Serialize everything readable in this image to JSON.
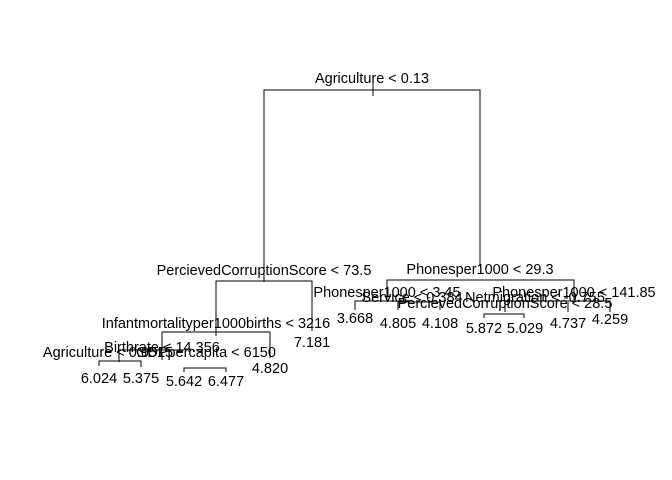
{
  "tree": {
    "root_split": "Agriculture < 0.13",
    "left_split": "PercievedCorruptionScore < 73.5",
    "left_left_split": "Infantmortalityper1000births < 3216",
    "left_left_left_split_a": "Agriculture < 0.0515",
    "left_left_left_split_b": "Birthrate < 14.356",
    "left_left_left_split_c": "GDPpercapita < 6150",
    "right_split": "Phonesper1000 < 29.3",
    "right_left_split": "Phonesper1000 < 3.45",
    "right_left_left_split": "Service < 0.384",
    "right_right_split": "Phonesper1000 < 141.85",
    "right_right_left_split_a": "Netmigration < -0.755",
    "right_right_left_split_b": "PercievedCorruptionScore < 28.5",
    "leaves": {
      "l1": "6.024",
      "l2": "5.375",
      "l3": "5.642",
      "l4": "6.477",
      "l5": "4.820",
      "l6": "7.181",
      "l7": "3.668",
      "l8": "4.805",
      "l9": "4.108",
      "l10": "5.872",
      "l11": "5.029",
      "l12": "4.737",
      "l13": "4.259"
    }
  }
}
